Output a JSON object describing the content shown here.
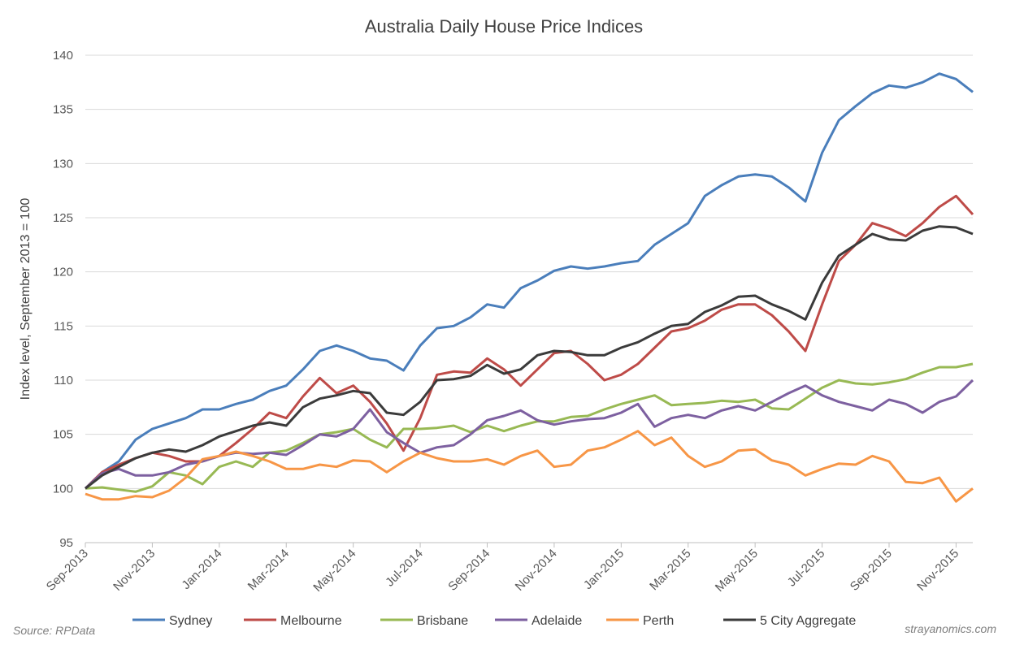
{
  "chart_data": {
    "type": "line",
    "title": "Australia Daily House Price Indices",
    "xlabel": "",
    "ylabel": "Index level, September 2013 = 100",
    "ylim": [
      95,
      140
    ],
    "yticks": [
      95,
      100,
      105,
      110,
      115,
      120,
      125,
      130,
      135,
      140
    ],
    "x_unit": "months since Sep-2013",
    "xlim": [
      0,
      26.5
    ],
    "xticks": [
      {
        "m": 0,
        "label": "Sep-2013"
      },
      {
        "m": 2,
        "label": "Nov-2013"
      },
      {
        "m": 4,
        "label": "Jan-2014"
      },
      {
        "m": 6,
        "label": "Mar-2014"
      },
      {
        "m": 8,
        "label": "May-2014"
      },
      {
        "m": 10,
        "label": "Jul-2014"
      },
      {
        "m": 12,
        "label": "Sep-2014"
      },
      {
        "m": 14,
        "label": "Nov-2014"
      },
      {
        "m": 16,
        "label": "Jan-2015"
      },
      {
        "m": 18,
        "label": "Mar-2015"
      },
      {
        "m": 20,
        "label": "May-2015"
      },
      {
        "m": 22,
        "label": "Jul-2015"
      },
      {
        "m": 24,
        "label": "Sep-2015"
      },
      {
        "m": 26,
        "label": "Nov-2015"
      }
    ],
    "x_step": 0.5,
    "grid": true,
    "legend_position": "bottom",
    "series": [
      {
        "name": "Sydney",
        "color": "#4a7ebb",
        "values": [
          100,
          101.5,
          102.5,
          104.5,
          105.5,
          106,
          106.5,
          107.3,
          107.3,
          107.8,
          108.2,
          109,
          109.5,
          111,
          112.7,
          113.2,
          112.7,
          112,
          111.8,
          110.9,
          113.2,
          114.8,
          115,
          115.8,
          117,
          116.7,
          118.5,
          119.2,
          120.1,
          120.5,
          120.3,
          120.5,
          120.8,
          121,
          122.5,
          123.5,
          124.5,
          127,
          128,
          128.8,
          129,
          128.8,
          127.8,
          126.5,
          131,
          134,
          135.3,
          136.5,
          137.2,
          137,
          137.5,
          138.3,
          137.8,
          136.6
        ]
      },
      {
        "name": "Melbourne",
        "color": "#be4b48",
        "values": [
          100,
          101.5,
          102.2,
          102.8,
          103.3,
          103,
          102.5,
          102.5,
          103,
          104.2,
          105.5,
          107,
          106.5,
          108.5,
          110.2,
          108.8,
          109.5,
          108,
          106,
          103.5,
          106.5,
          110.5,
          110.8,
          110.7,
          112,
          111,
          109.5,
          111,
          112.5,
          112.7,
          111.5,
          110,
          110.5,
          111.5,
          113,
          114.5,
          114.8,
          115.5,
          116.5,
          117,
          117,
          116,
          114.5,
          112.7,
          117,
          121,
          122.5,
          124.5,
          124,
          123.3,
          124.5,
          126,
          127,
          125.3
        ]
      },
      {
        "name": "Brisbane",
        "color": "#98b954",
        "values": [
          100,
          100.1,
          99.9,
          99.7,
          100.2,
          101.5,
          101.2,
          100.4,
          102,
          102.5,
          102,
          103.3,
          103.5,
          104.2,
          105,
          105.2,
          105.5,
          104.5,
          103.8,
          105.5,
          105.5,
          105.6,
          105.8,
          105.2,
          105.8,
          105.3,
          105.8,
          106.2,
          106.2,
          106.6,
          106.7,
          107.3,
          107.8,
          108.2,
          108.6,
          107.7,
          107.8,
          107.9,
          108.1,
          108,
          108.2,
          107.4,
          107.3,
          108.3,
          109.3,
          110,
          109.7,
          109.6,
          109.8,
          110.1,
          110.7,
          111.2,
          111.2,
          111.5
        ]
      },
      {
        "name": "Adelaide",
        "color": "#7d60a0",
        "values": [
          100,
          101.4,
          101.8,
          101.2,
          101.2,
          101.5,
          102.2,
          102.5,
          103,
          103.3,
          103.2,
          103.3,
          103.1,
          104,
          105,
          104.8,
          105.5,
          107.3,
          105.2,
          104.2,
          103.3,
          103.8,
          104,
          105,
          106.3,
          106.7,
          107.2,
          106.3,
          105.9,
          106.2,
          106.4,
          106.5,
          107,
          107.8,
          105.7,
          106.5,
          106.8,
          106.5,
          107.2,
          107.6,
          107.2,
          108,
          108.8,
          109.5,
          108.6,
          108,
          107.6,
          107.2,
          108.2,
          107.8,
          107,
          108,
          108.5,
          110
        ]
      },
      {
        "name": "Perth",
        "color": "#f79646",
        "values": [
          99.5,
          99,
          99,
          99.3,
          99.2,
          99.8,
          101,
          102.7,
          103,
          103.4,
          103,
          102.5,
          101.8,
          101.8,
          102.2,
          102,
          102.6,
          102.5,
          101.5,
          102.5,
          103.3,
          102.8,
          102.5,
          102.5,
          102.7,
          102.2,
          103,
          103.5,
          102,
          102.2,
          103.5,
          103.8,
          104.5,
          105.3,
          104,
          104.7,
          103,
          102,
          102.5,
          103.5,
          103.6,
          102.6,
          102.2,
          101.2,
          101.8,
          102.3,
          102.2,
          103,
          102.5,
          100.6,
          100.5,
          101,
          98.8,
          100
        ]
      },
      {
        "name": "5 City Aggregate",
        "color": "#3b3b3b",
        "values": [
          100,
          101.2,
          102,
          102.8,
          103.3,
          103.6,
          103.4,
          104,
          104.8,
          105.3,
          105.8,
          106.1,
          105.8,
          107.5,
          108.3,
          108.6,
          109,
          108.8,
          107,
          106.8,
          108,
          110,
          110.1,
          110.4,
          111.4,
          110.6,
          111,
          112.3,
          112.7,
          112.6,
          112.3,
          112.3,
          113,
          113.5,
          114.3,
          115,
          115.2,
          116.3,
          116.9,
          117.7,
          117.8,
          117,
          116.4,
          115.6,
          119,
          121.5,
          122.5,
          123.5,
          123,
          122.9,
          123.8,
          124.2,
          124.1,
          123.5
        ]
      }
    ],
    "source": "Source: RPData",
    "credit": "strayanomics.com"
  }
}
